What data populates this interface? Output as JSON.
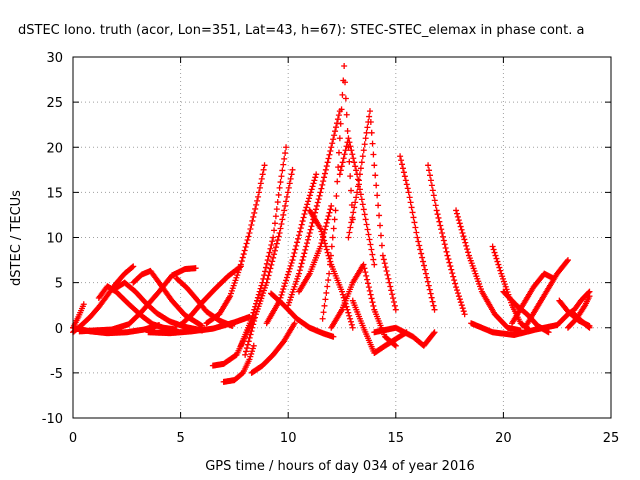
{
  "chart_data": {
    "type": "scatter",
    "title": "dSTEC Iono. truth (acor, Lon=351, Lat=43, h=67): STEC-STEC_elemax in phase cont. a",
    "xlabel": "GPS time / hours of day 034 of year 2016",
    "ylabel": "dSTEC  / TECUs",
    "xlim": [
      0,
      25
    ],
    "ylim": [
      -10,
      30
    ],
    "xticks": [
      0,
      5,
      10,
      15,
      20,
      25
    ],
    "yticks": [
      -10,
      -5,
      0,
      5,
      10,
      15,
      20,
      25,
      30
    ],
    "grid": true,
    "marker": "+",
    "series_color": "#ff0000",
    "series": [
      {
        "x": [
          0.0,
          0.4,
          0.8,
          1.2,
          1.6,
          2.0,
          2.4,
          2.8
        ],
        "y": [
          -0.5,
          0.3,
          1.2,
          2.3,
          3.6,
          4.9,
          6.0,
          6.8
        ]
      },
      {
        "x": [
          0.0,
          0.25,
          0.5
        ],
        "y": [
          0.0,
          1.2,
          2.6
        ]
      },
      {
        "x": [
          0.3,
          1.0,
          1.8,
          2.6,
          3.2,
          4.0,
          4.6,
          5.2,
          5.7
        ],
        "y": [
          -0.4,
          -0.3,
          -0.2,
          0.4,
          1.8,
          4.0,
          5.8,
          6.5,
          6.6
        ]
      },
      {
        "x": [
          1.2,
          1.6,
          2.0,
          2.6,
          3.2,
          3.7,
          4.2,
          4.8
        ],
        "y": [
          3.3,
          4.6,
          4.0,
          2.6,
          1.3,
          0.4,
          0.0,
          -0.2
        ]
      },
      {
        "x": [
          2.0,
          2.4,
          2.9,
          3.4,
          3.9,
          4.5,
          5.2,
          6.0
        ],
        "y": [
          4.4,
          5.0,
          4.0,
          2.7,
          1.6,
          0.7,
          0.1,
          -0.3
        ]
      },
      {
        "x": [
          2.8,
          3.2,
          3.6,
          4.0,
          4.6,
          5.2,
          6.0
        ],
        "y": [
          5.0,
          5.9,
          6.3,
          5.0,
          3.0,
          1.4,
          0.2
        ]
      },
      {
        "x": [
          5.0,
          5.5,
          6.0,
          6.6,
          7.2,
          7.8
        ],
        "y": [
          0.3,
          1.4,
          2.8,
          4.3,
          5.7,
          6.8
        ]
      },
      {
        "x": [
          4.8,
          5.3,
          5.8,
          6.2,
          6.8,
          7.4
        ],
        "y": [
          5.5,
          4.4,
          3.0,
          1.8,
          0.8,
          0.2
        ]
      },
      {
        "x": [
          3.5,
          4.5,
          5.5,
          6.5,
          7.5,
          8.2
        ],
        "y": [
          -0.5,
          -0.6,
          -0.4,
          -0.1,
          0.6,
          1.2
        ]
      },
      {
        "x": [
          0.0,
          0.8,
          1.6,
          2.5,
          3.3,
          4.0
        ],
        "y": [
          0.0,
          -0.4,
          -0.6,
          -0.5,
          -0.2,
          0.3
        ]
      },
      {
        "x": [
          6.2,
          6.8,
          7.3,
          7.8,
          8.2,
          8.6,
          8.9
        ],
        "y": [
          0.5,
          1.5,
          3.5,
          7.0,
          10.5,
          14.5,
          18.0
        ]
      },
      {
        "x": [
          6.5,
          7.0,
          7.6,
          8.0,
          8.4
        ],
        "y": [
          -4.2,
          -4.0,
          -3.0,
          -1.0,
          1.0
        ]
      },
      {
        "x": [
          7.0,
          7.5,
          7.9,
          8.2,
          8.4
        ],
        "y": [
          -6.0,
          -5.8,
          -5.0,
          -3.5,
          -2.0
        ]
      },
      {
        "x": [
          7.8,
          8.3,
          8.8,
          9.3,
          9.6,
          9.9
        ],
        "y": [
          -2.0,
          1.0,
          5.0,
          10.0,
          15.5,
          20.0
        ]
      },
      {
        "x": [
          8.0,
          8.5,
          9.0,
          9.6,
          10.2
        ],
        "y": [
          -3.0,
          1.5,
          5.0,
          10.5,
          17.5
        ]
      },
      {
        "x": [
          8.3,
          8.8,
          9.3,
          9.8,
          10.3
        ],
        "y": [
          -5.0,
          -4.2,
          -3.0,
          -1.5,
          0.5
        ]
      },
      {
        "x": [
          9.0,
          9.6,
          10.2,
          10.8,
          11.3
        ],
        "y": [
          0.5,
          3.0,
          7.5,
          13.0,
          17.0
        ]
      },
      {
        "x": [
          10.0,
          10.5,
          11.0,
          11.5,
          12.0,
          12.4
        ],
        "y": [
          2.5,
          6.0,
          10.5,
          15.0,
          20.0,
          24.0
        ]
      },
      {
        "x": [
          10.5,
          11.0,
          11.5,
          12.0
        ],
        "y": [
          4.0,
          6.0,
          9.0,
          13.5
        ]
      },
      {
        "x": [
          9.2,
          9.8,
          10.4,
          11.0,
          11.6,
          12.1
        ],
        "y": [
          3.8,
          2.5,
          1.0,
          0.0,
          -0.6,
          -1.0
        ]
      },
      {
        "x": [
          11.6,
          11.9,
          12.2,
          12.4,
          12.6,
          12.8,
          13.0
        ],
        "y": [
          1.0,
          6.0,
          13.0,
          21.0,
          29.0,
          20.0,
          12.0
        ]
      },
      {
        "x": [
          12.4,
          12.8,
          13.2,
          13.6,
          14.0
        ],
        "y": [
          17.0,
          21.0,
          17.0,
          12.0,
          7.0
        ]
      },
      {
        "x": [
          12.8,
          13.2,
          13.6,
          13.8,
          14.0,
          14.4,
          15.0
        ],
        "y": [
          10.0,
          15.0,
          21.0,
          24.0,
          18.0,
          8.0,
          2.0
        ]
      },
      {
        "x": [
          12.0,
          12.5,
          13.0,
          13.5,
          14.0,
          14.5,
          15.0
        ],
        "y": [
          0.0,
          2.0,
          5.0,
          7.0,
          2.0,
          -1.0,
          -2.0
        ]
      },
      {
        "x": [
          11.0,
          11.5,
          12.0,
          12.5,
          13.0
        ],
        "y": [
          13.0,
          11.0,
          7.0,
          4.0,
          0.0
        ]
      },
      {
        "x": [
          13.0,
          13.5,
          14.0,
          14.5,
          15.5
        ],
        "y": [
          3.0,
          0.0,
          -2.8,
          -2.0,
          -0.5
        ]
      },
      {
        "x": [
          15.2,
          15.6,
          16.0,
          16.4,
          16.8
        ],
        "y": [
          19.0,
          15.0,
          10.0,
          6.0,
          2.0
        ]
      },
      {
        "x": [
          16.5,
          16.9,
          17.4,
          17.8,
          18.2
        ],
        "y": [
          18.0,
          13.0,
          8.0,
          4.5,
          1.5
        ]
      },
      {
        "x": [
          14.0,
          15.0,
          15.8,
          16.3,
          16.8
        ],
        "y": [
          -0.5,
          0.0,
          -1.0,
          -2.0,
          -0.5
        ]
      },
      {
        "x": [
          17.8,
          18.4,
          19.0,
          19.6,
          20.2,
          20.8
        ],
        "y": [
          13.0,
          8.0,
          4.0,
          1.5,
          0.0,
          -0.3
        ]
      },
      {
        "x": [
          18.5,
          19.5,
          20.5,
          21.5,
          22.5
        ],
        "y": [
          0.5,
          -0.5,
          -0.8,
          -0.2,
          0.3
        ]
      },
      {
        "x": [
          19.5,
          19.9,
          20.4,
          20.8,
          21.2
        ],
        "y": [
          9.0,
          6.0,
          2.5,
          0.5,
          -0.2
        ]
      },
      {
        "x": [
          20.0,
          20.6,
          21.1,
          21.6,
          22.1
        ],
        "y": [
          4.0,
          2.5,
          1.5,
          0.2,
          -0.5
        ]
      },
      {
        "x": [
          20.4,
          20.9,
          21.4,
          21.9,
          22.3
        ],
        "y": [
          0.5,
          2.5,
          4.5,
          6.0,
          5.5
        ]
      },
      {
        "x": [
          21.0,
          21.5,
          22.0,
          22.5,
          23.0
        ],
        "y": [
          0.0,
          2.0,
          4.0,
          6.0,
          7.5
        ]
      },
      {
        "x": [
          22.5,
          23.0,
          23.3,
          23.6,
          24.0
        ],
        "y": [
          0.3,
          1.5,
          2.0,
          3.0,
          4.0
        ]
      },
      {
        "x": [
          22.6,
          23.0,
          23.5,
          24.0
        ],
        "y": [
          3.0,
          1.8,
          0.8,
          0.2
        ]
      },
      {
        "x": [
          23.0,
          23.4,
          23.8,
          24.0
        ],
        "y": [
          0.0,
          1.0,
          2.5,
          3.5
        ]
      },
      {
        "x": [
          23.3,
          23.6,
          24.0
        ],
        "y": [
          1.5,
          0.8,
          0.0
        ]
      }
    ]
  }
}
